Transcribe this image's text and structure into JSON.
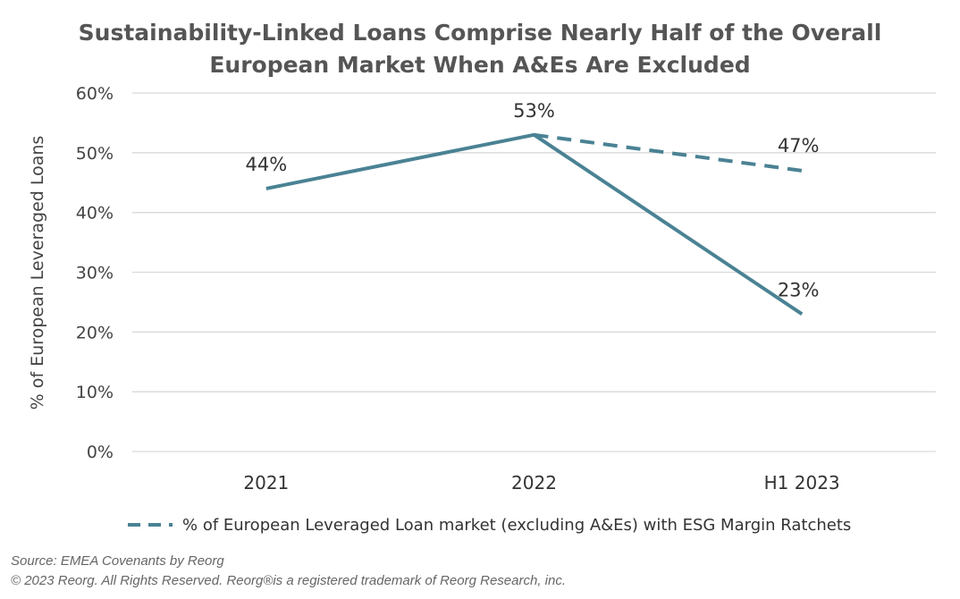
{
  "chart_data": {
    "type": "line",
    "title_lines": [
      "Sustainability-Linked Loans Comprise Nearly Half of the Overall",
      "European Market When A&Es Are Excluded"
    ],
    "ylabel": "% of European Leveraged Loans",
    "xlabel": "",
    "categories": [
      "2021",
      "2022",
      "H1 2023"
    ],
    "ylim": [
      0,
      60
    ],
    "yticks": [
      0,
      10,
      20,
      30,
      40,
      50,
      60
    ],
    "ytick_labels": [
      "0%",
      "10%",
      "20%",
      "30%",
      "40%",
      "50%",
      "60%"
    ],
    "grid": true,
    "legend_position": "bottom",
    "series": [
      {
        "values": [
          44,
          53,
          23
        ],
        "labels": [
          "44%",
          "53%",
          "23%"
        ],
        "style": "solid",
        "color": "#4a8294"
      },
      {
        "name": "% of European Leveraged Loan market (excluding A&Es) with ESG Margin Ratchets",
        "values": [
          null,
          53,
          47
        ],
        "labels": [
          null,
          null,
          "47%"
        ],
        "style": "dashed",
        "color": "#4a8294"
      }
    ]
  },
  "footer": {
    "source": "Source: EMEA Covenants by Reorg",
    "copyright": "© 2023 Reorg. All Rights Reserved. Reorg®is a registered trademark of Reorg Research, inc."
  }
}
